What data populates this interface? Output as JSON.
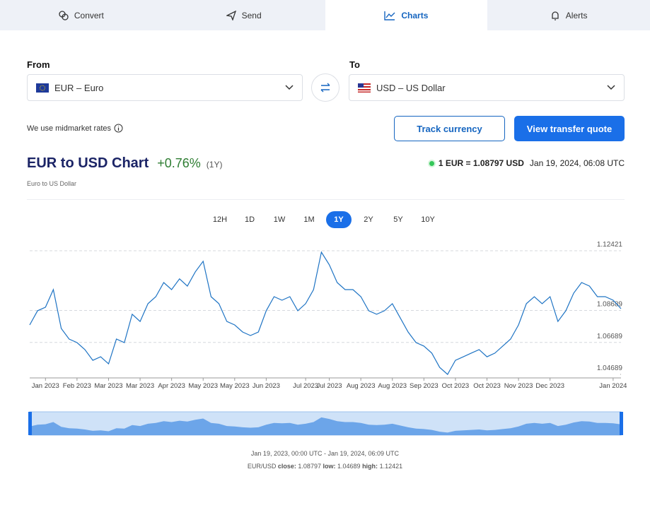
{
  "tabs": [
    {
      "label": "Convert"
    },
    {
      "label": "Send"
    },
    {
      "label": "Charts",
      "active": true
    },
    {
      "label": "Alerts"
    }
  ],
  "converter": {
    "from_label": "From",
    "from_value": "EUR – Euro",
    "to_label": "To",
    "to_value": "USD – US Dollar",
    "note": "We use midmarket rates",
    "track_button": "Track currency",
    "quote_button": "View transfer quote"
  },
  "header": {
    "title": "EUR to USD Chart",
    "change": "+0.76%",
    "period": "(1Y)",
    "subtitle": "Euro to US Dollar",
    "rate": "1 EUR = 1.08797 USD",
    "timestamp": "Jan 19, 2024, 06:08 UTC"
  },
  "ranges": [
    {
      "label": "12H"
    },
    {
      "label": "1D"
    },
    {
      "label": "1W"
    },
    {
      "label": "1M"
    },
    {
      "label": "1Y",
      "active": true
    },
    {
      "label": "2Y"
    },
    {
      "label": "5Y"
    },
    {
      "label": "10Y"
    }
  ],
  "footer": {
    "range": "Jan 19, 2023, 00:00 UTC - Jan 19, 2024, 06:09 UTC",
    "pair": "EUR/USD",
    "close_label": "close:",
    "close": "1.08797",
    "low_label": "low:",
    "low": "1.04689",
    "high_label": "high:",
    "high": "1.12421"
  },
  "chart_data": {
    "type": "line",
    "color": "#1f74c4",
    "grid": true,
    "categories": [
      null,
      null,
      "Jan 2023",
      null,
      null,
      null,
      "Feb 2023",
      null,
      null,
      null,
      "Mar 2023",
      null,
      null,
      null,
      "Mar 2023",
      null,
      null,
      null,
      "Apr 2023",
      null,
      null,
      null,
      "May 2023",
      null,
      null,
      null,
      "May 2023",
      null,
      null,
      null,
      "Jun 2023",
      null,
      null,
      null,
      null,
      "Jul 2023",
      null,
      null,
      "Jul 2023",
      null,
      null,
      null,
      "Aug 2023",
      null,
      null,
      null,
      "Aug 2023",
      null,
      null,
      null,
      "Sep 2023",
      null,
      null,
      null,
      "Oct 2023",
      null,
      null,
      null,
      "Oct 2023",
      null,
      null,
      null,
      "Nov 2023",
      null,
      null,
      null,
      "Dec 2023",
      null,
      null,
      null,
      null,
      null,
      null,
      null,
      "Jan 2024",
      null
    ],
    "values": [
      1.0778,
      1.0867,
      1.0889,
      1.0999,
      1.0756,
      1.069,
      1.0668,
      1.0624,
      1.0557,
      1.0579,
      1.0535,
      1.069,
      1.0668,
      1.0845,
      1.08,
      1.0911,
      1.0955,
      1.1043,
      1.0999,
      1.1066,
      1.1021,
      1.111,
      1.1176,
      1.0955,
      1.0911,
      1.08,
      1.0778,
      1.0734,
      1.0712,
      1.0734,
      1.0867,
      1.0955,
      1.0933,
      1.0955,
      1.0867,
      1.0911,
      1.0999,
      1.1233,
      1.1154,
      1.1043,
      1.0999,
      1.0999,
      1.0955,
      1.0867,
      1.0845,
      1.0867,
      1.0911,
      1.0822,
      1.0734,
      1.0668,
      1.0646,
      1.0602,
      1.0513,
      1.0469,
      1.0557,
      1.0579,
      1.0602,
      1.0624,
      1.0579,
      1.0602,
      1.0646,
      1.069,
      1.0778,
      1.0911,
      1.0955,
      1.0911,
      1.0955,
      1.08,
      1.0867,
      1.0977,
      1.1043,
      1.1021,
      1.0955,
      1.0955,
      1.0933,
      1.08797
    ],
    "ylim": [
      1.0447,
      1.1264
    ],
    "yticks": [
      1.04689,
      1.06689,
      1.08689,
      1.12421
    ]
  }
}
